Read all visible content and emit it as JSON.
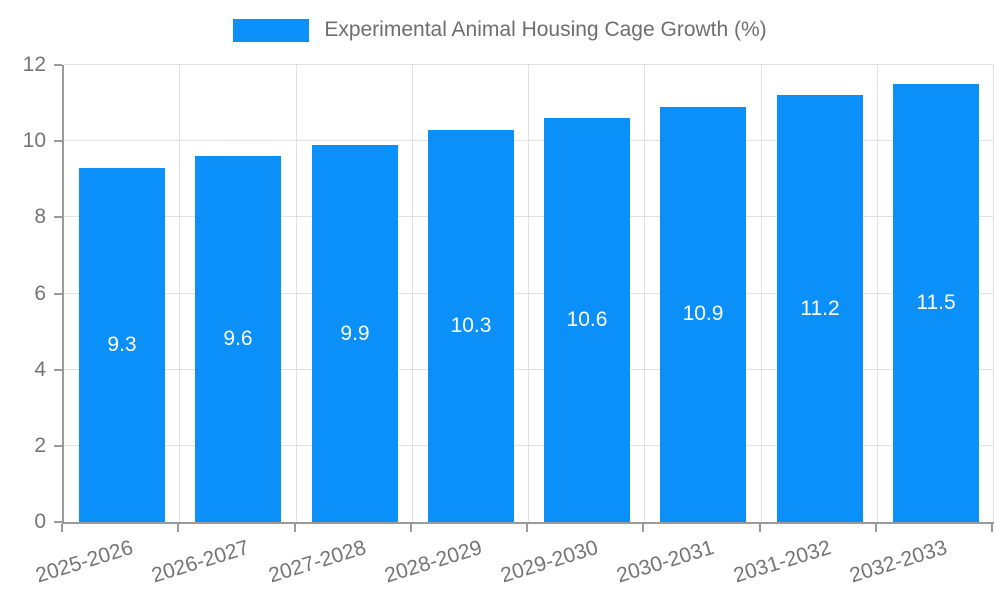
{
  "chart_data": {
    "type": "bar",
    "title": "",
    "legend": {
      "position": "top",
      "entries": [
        "Experimental Animal Housing Cage Growth (%)"
      ]
    },
    "categories": [
      "2025-2026",
      "2026-2027",
      "2027-2028",
      "2028-2029",
      "2029-2030",
      "2030-2031",
      "2031-2032",
      "2032-2033"
    ],
    "series": [
      {
        "name": "Experimental Animal Housing Cage Growth (%)",
        "values": [
          9.3,
          9.6,
          9.9,
          10.3,
          10.6,
          10.9,
          11.2,
          11.5
        ]
      }
    ],
    "value_labels": [
      "9.3",
      "9.6",
      "9.9",
      "10.3",
      "10.6",
      "10.9",
      "11.2",
      "11.5"
    ],
    "xlabel": "",
    "ylabel": "",
    "ylim": [
      0,
      12
    ],
    "yticks": [
      0,
      2,
      4,
      6,
      8,
      10,
      12
    ],
    "grid": true,
    "colors": {
      "bar": "#0a90f8",
      "value_label": "#ffffff",
      "axis": "#9a9a9a",
      "gridline": "#e2e2e2",
      "tick_text": "#757575",
      "legend_text": "#6e6e6e",
      "background": "#ffffff"
    }
  }
}
